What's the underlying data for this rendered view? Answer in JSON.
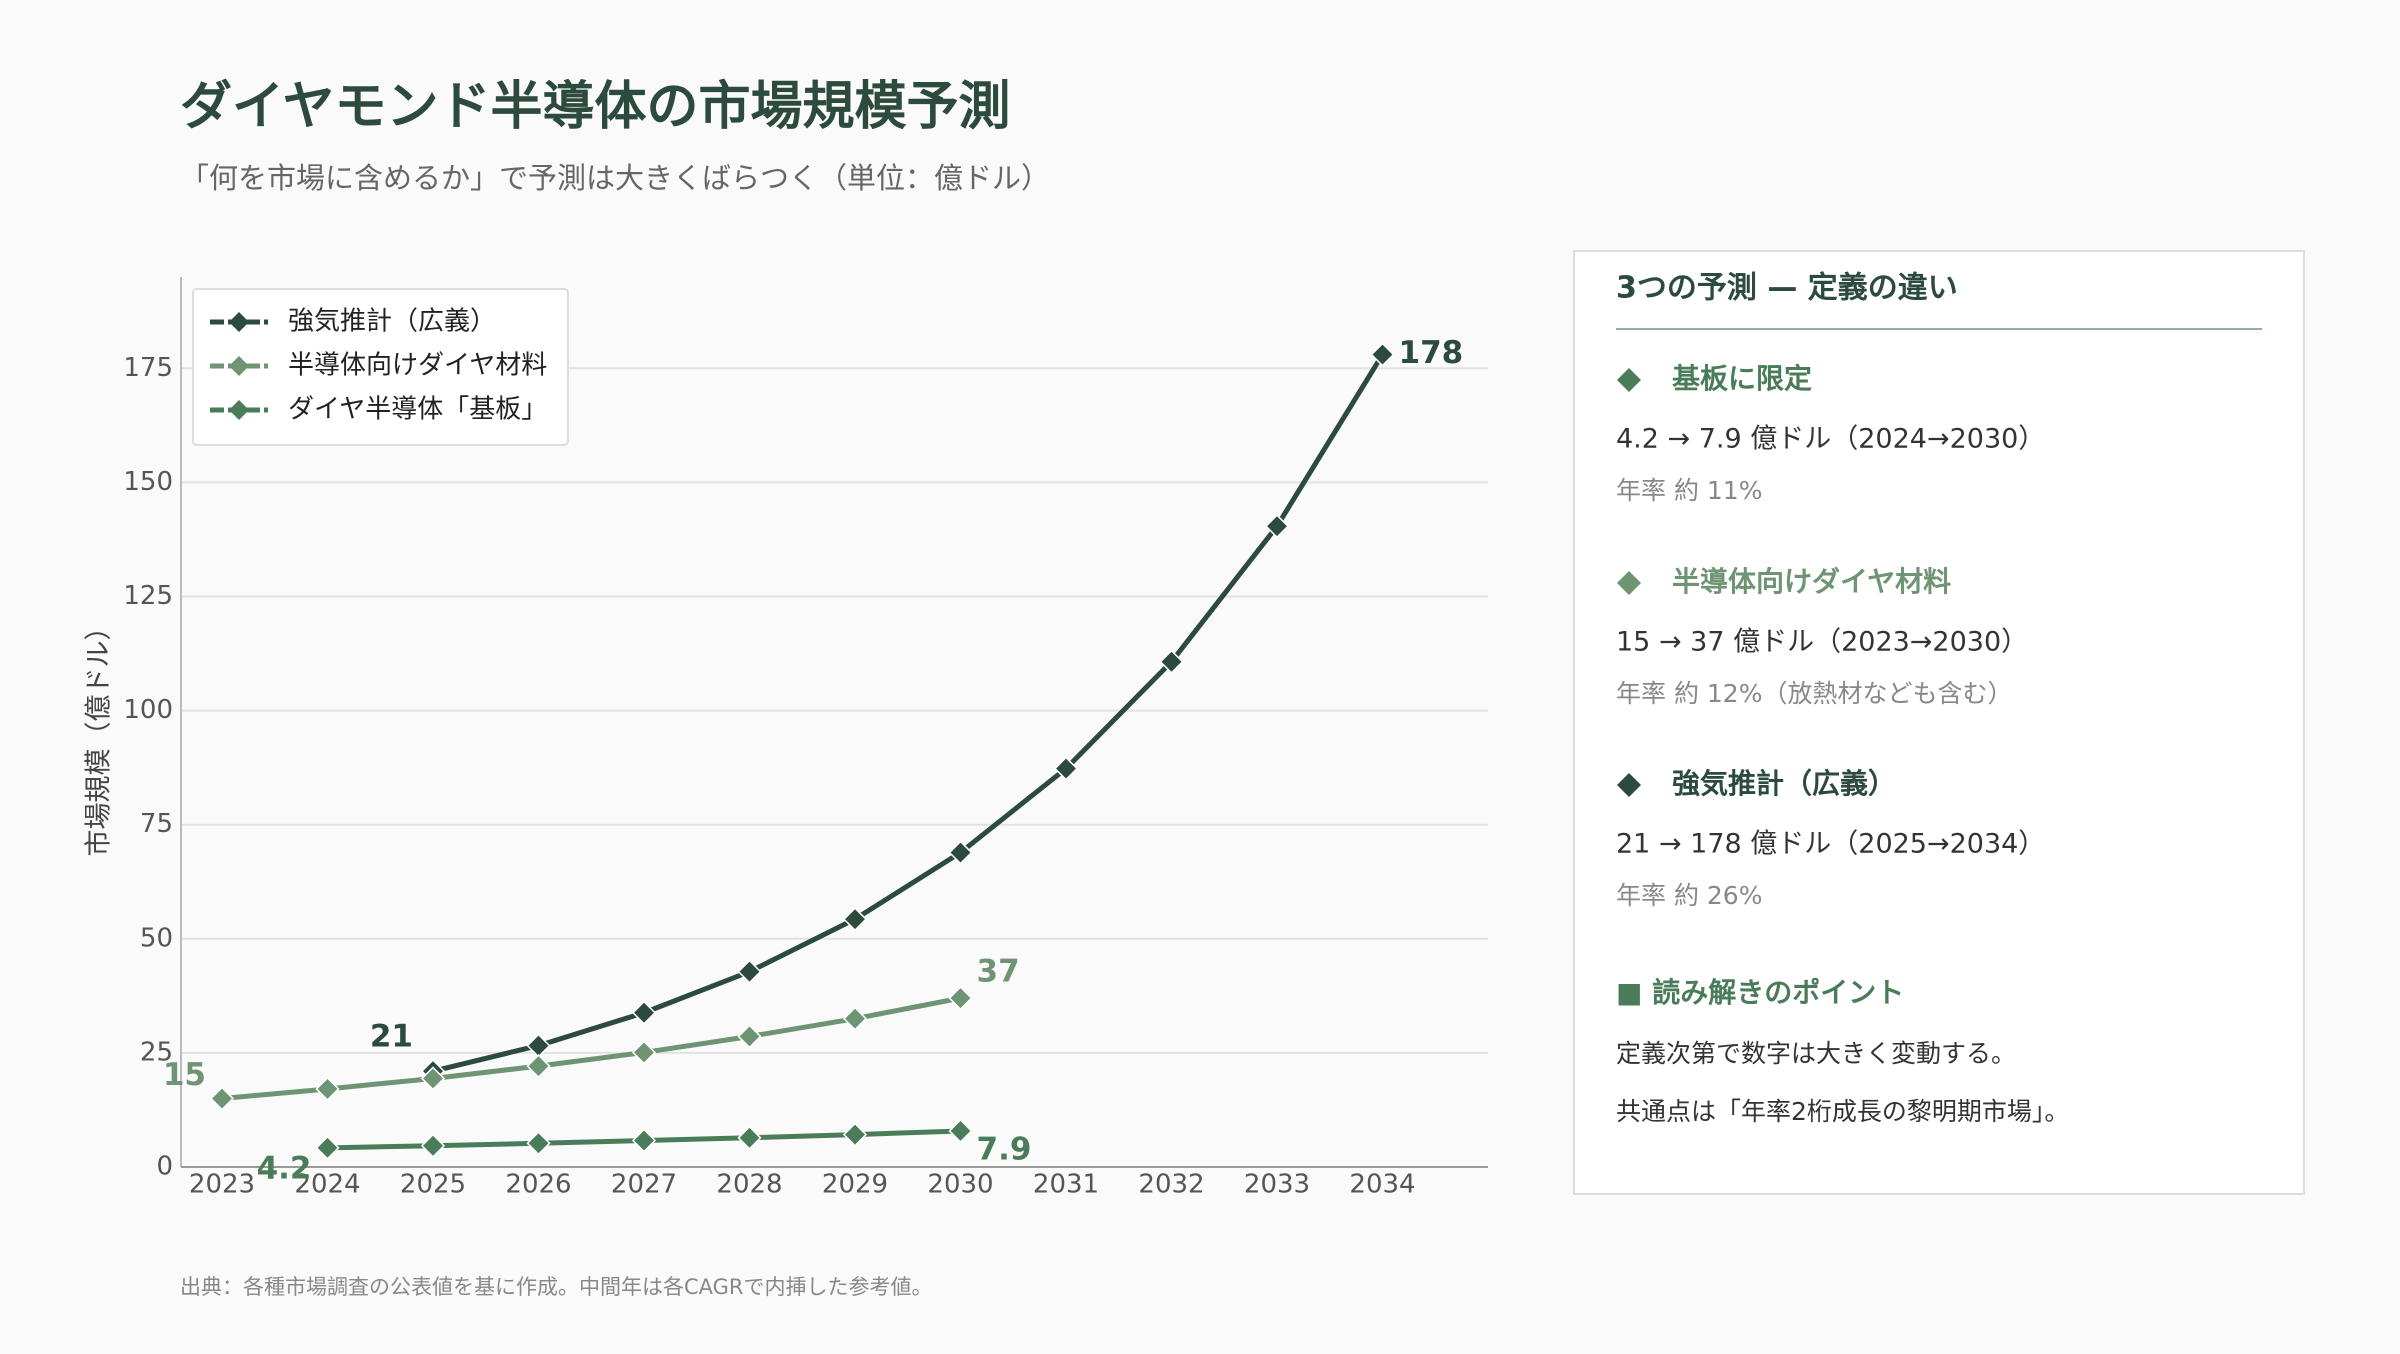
{
  "header": {
    "title": "ダイヤモンド半導体の市場規模予測",
    "subtitle": "「何を市場に含めるか」で予測は大きくばらつく（単位：億ドル）"
  },
  "chart_data": {
    "type": "line",
    "categories": [
      "2023",
      "2024",
      "2025",
      "2026",
      "2027",
      "2028",
      "2029",
      "2030",
      "2031",
      "2032",
      "2033",
      "2034"
    ],
    "y_label": "市場規模（億ドル）",
    "ylim": [
      0,
      195
    ],
    "yticks": [
      0,
      25,
      50,
      75,
      100,
      125,
      150,
      175
    ],
    "grid": true,
    "legend": "upper-left",
    "series": [
      {
        "name": "強気推計（広義）",
        "color": "#2d4a3e",
        "values": [
          null,
          null,
          21,
          26.6,
          33.8,
          42.8,
          54.3,
          68.9,
          87.3,
          110.7,
          140.4,
          178
        ]
      },
      {
        "name": "半導体向けダイヤ材料",
        "color": "#6e9474",
        "values": [
          15,
          17.1,
          19.4,
          22.1,
          25.1,
          28.6,
          32.5,
          37,
          null,
          null,
          null,
          null
        ]
      },
      {
        "name": "ダイヤ半導体「基板」",
        "color": "#4a7c59",
        "values": [
          null,
          4.2,
          4.66,
          5.2,
          5.8,
          6.4,
          7.1,
          7.9,
          null,
          null,
          null,
          null
        ]
      }
    ]
  },
  "panel": {
    "title": "3つの予測 — 定義の違い",
    "items": [
      {
        "heading": "基板に限定",
        "color": "#4a7c59",
        "detail": "4.2 → 7.9 億ドル（2024→2030）",
        "rate": "年率 約 11%"
      },
      {
        "heading": "半導体向けダイヤ材料",
        "color": "#6e9474",
        "detail": "15 → 37 億ドル（2023→2030）",
        "rate": "年率 約 12%（放熱材なども含む）"
      },
      {
        "heading": "強気推計（広義）",
        "color": "#2d4a3e",
        "detail": "21 → 178 億ドル（2025→2034）",
        "rate": "年率 約 26%"
      }
    ],
    "point_title": "■ 読み解きのポイント",
    "point_lines": [
      "定義次第で数字は大きく変動する。",
      "共通点は「年率2桁成長の黎明期市場」。"
    ]
  },
  "footer": "出典：各種市場調査の公表値を基に作成。中間年は各CAGRで内挿した参考値。"
}
